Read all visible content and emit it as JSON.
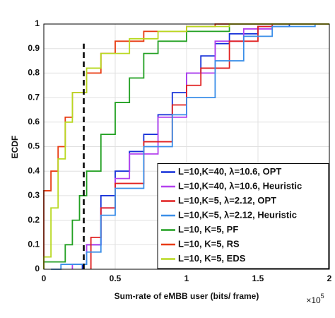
{
  "chart_data": {
    "type": "step",
    "xlabel": "Sum-rate of eMBB user (bits/ frame)",
    "ylabel": "ECDF",
    "x_multiplier": {
      "base": "×10",
      "exponent": "5"
    },
    "xlim": [
      0,
      2
    ],
    "xticks": [
      0,
      0.5,
      1,
      1.5,
      2
    ],
    "ylim": [
      0,
      1
    ],
    "yticks": [
      0,
      0.1,
      0.2,
      0.3,
      0.4,
      0.5,
      0.6,
      0.7,
      0.8,
      0.9,
      1
    ],
    "grid": true,
    "legend_position": "lower right",
    "reference_line": {
      "x": 0.28,
      "y_end": 0.92,
      "color": "#000000",
      "dashed": true
    },
    "series": [
      {
        "name": "L=10,K=40, λ=10.6, OPT",
        "color": "#1530d8",
        "x": [
          0.27,
          0.3,
          0.4,
          0.5,
          0.6,
          0.7,
          0.8,
          0.9,
          1.0,
          1.1,
          1.2,
          1.3,
          1.5,
          1.72
        ],
        "values": [
          0.02,
          0.1,
          0.3,
          0.4,
          0.48,
          0.55,
          0.63,
          0.72,
          0.8,
          0.87,
          0.92,
          0.96,
          0.99,
          1
        ]
      },
      {
        "name": "L=10,K=40, λ=10.6, Heuristic",
        "color": "#b440ee",
        "x": [
          0.2,
          0.3,
          0.4,
          0.5,
          0.6,
          0.8,
          1.0,
          1.2,
          1.4,
          1.6
        ],
        "values": [
          0.02,
          0.1,
          0.25,
          0.37,
          0.47,
          0.62,
          0.8,
          0.93,
          0.98,
          1
        ]
      },
      {
        "name": "L=10,K=5, λ=2.12, OPT",
        "color": "#e02020",
        "x": [
          0.33,
          0.4,
          0.5,
          0.7,
          0.9,
          1.0,
          1.1,
          1.3,
          1.5,
          1.6
        ],
        "values": [
          0.13,
          0.25,
          0.35,
          0.52,
          0.67,
          0.75,
          0.82,
          0.93,
          0.99,
          1
        ]
      },
      {
        "name": "L=10,K=5, λ=2.12, Heuristic",
        "color": "#3a8ee8",
        "x": [
          0.05,
          0.12,
          0.3,
          0.4,
          0.5,
          0.7,
          0.9,
          1.0,
          1.2,
          1.4,
          1.6,
          1.9
        ],
        "values": [
          0,
          0.02,
          0.07,
          0.22,
          0.33,
          0.5,
          0.63,
          0.7,
          0.85,
          0.95,
          0.99,
          1
        ]
      },
      {
        "name": "L=10, K=5, PF",
        "color": "#22a022",
        "x": [
          0,
          0.15,
          0.2,
          0.25,
          0.3,
          0.4,
          0.5,
          0.6,
          0.7,
          0.8,
          1.0,
          1.3
        ],
        "values": [
          0.03,
          0.1,
          0.2,
          0.3,
          0.4,
          0.55,
          0.68,
          0.78,
          0.88,
          0.93,
          0.97,
          1
        ]
      },
      {
        "name": "L=10, K=5, RS",
        "color": "#e83a10",
        "x": [
          0,
          0.05,
          0.1,
          0.15,
          0.2,
          0.3,
          0.4,
          0.5,
          0.7,
          1.0,
          1.2
        ],
        "values": [
          0.32,
          0.4,
          0.5,
          0.62,
          0.72,
          0.8,
          0.88,
          0.93,
          0.97,
          0.99,
          1
        ]
      },
      {
        "name": "L=10, K=5, EDS",
        "color": "#b8d820",
        "x": [
          0,
          0.05,
          0.1,
          0.15,
          0.2,
          0.3,
          0.4,
          0.6,
          0.8,
          1.0,
          1.3
        ],
        "values": [
          0.05,
          0.25,
          0.45,
          0.6,
          0.72,
          0.82,
          0.88,
          0.94,
          0.97,
          0.99,
          1
        ]
      }
    ]
  }
}
